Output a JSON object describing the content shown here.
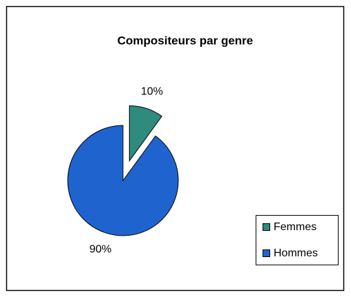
{
  "chart_data": {
    "type": "pie",
    "title": "Compositeurs par genre",
    "categories": [
      "Femmes",
      "Hommes"
    ],
    "values": [
      10,
      90
    ],
    "value_labels": [
      "10%",
      "90%"
    ],
    "colors": [
      "#2e8b7d",
      "#1f63cf"
    ],
    "legend": "right"
  }
}
